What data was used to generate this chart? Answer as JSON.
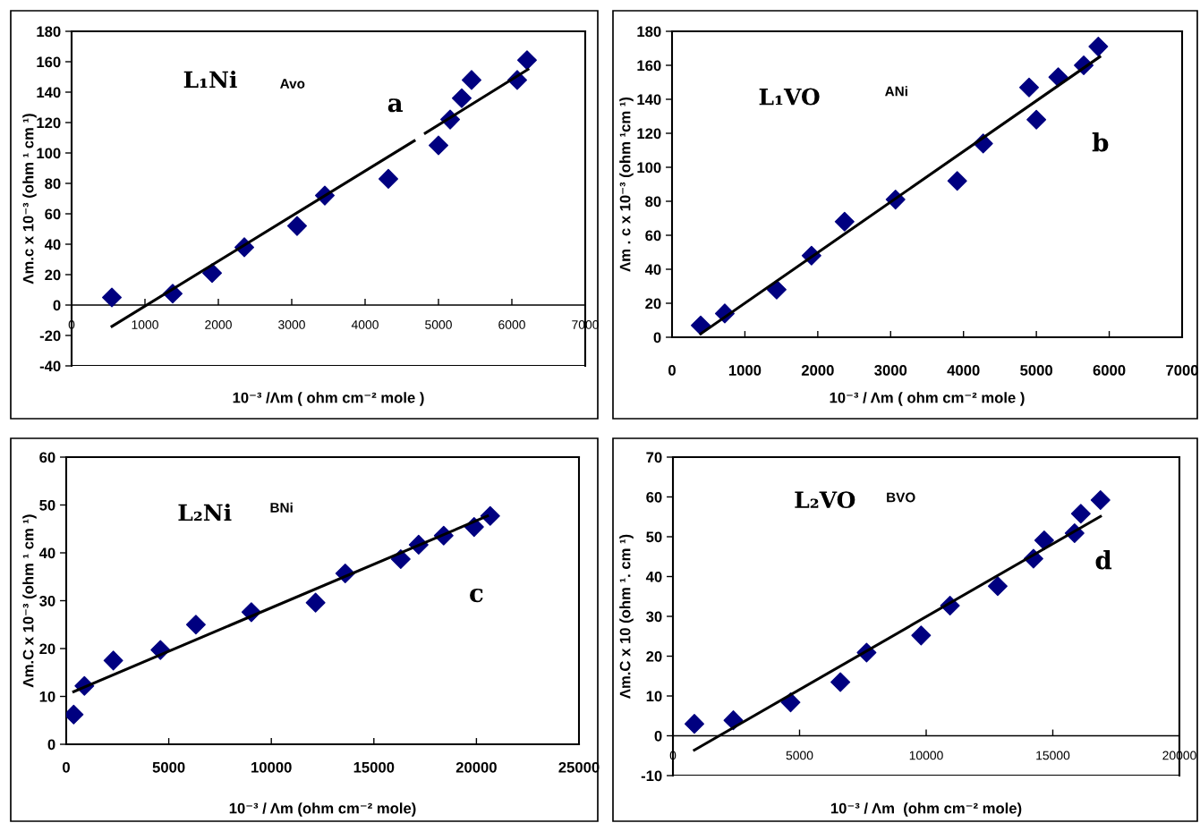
{
  "chart_data": [
    {
      "type": "scatter",
      "title": "L₁Ni",
      "annotations": [
        "Avo",
        "a"
      ],
      "xlabel": "10⁻³ /Λm ( ohm cm⁻² mole )",
      "ylabel": "Λm.c x 10⁻³ (ohm ¹ cm ¹)",
      "xlim": [
        0,
        7000
      ],
      "xticks": [
        0,
        1000,
        2000,
        3000,
        4000,
        5000,
        6000,
        7000
      ],
      "ylim": [
        -40,
        180
      ],
      "yticks": [
        -40,
        -20,
        0,
        20,
        40,
        60,
        80,
        100,
        120,
        140,
        160,
        180
      ],
      "grid": false,
      "legend": false,
      "series": [
        {
          "marker": "diamond",
          "color": "#000080",
          "x": [
            549,
            1378,
            1915,
            2354,
            3073,
            3451,
            4317,
            5000,
            5159,
            5317,
            5451,
            6073,
            6207
          ],
          "values": [
            5,
            7.5,
            21,
            38,
            52,
            72,
            83,
            105,
            122,
            136,
            148,
            148,
            161
          ]
        },
        {
          "type": "line",
          "color": "#000000",
          "x": [
            550,
            4670,
            4750,
            4820,
            6220
          ],
          "values": [
            -14,
            108,
            null,
            113,
            155
          ]
        }
      ]
    },
    {
      "type": "scatter",
      "title": "L₁VO",
      "annotations": [
        "ANi",
        "b"
      ],
      "xlabel": "10⁻³ / Λm ( ohm cm⁻² mole )",
      "ylabel": "Λm . c x 10⁻³ (ohm ¹cm ¹)",
      "xlim": [
        0,
        7000
      ],
      "xticks": [
        0,
        1000,
        2000,
        3000,
        4000,
        5000,
        6000,
        7000
      ],
      "ylim": [
        0,
        180
      ],
      "yticks": [
        0,
        20,
        40,
        60,
        80,
        100,
        120,
        140,
        160,
        180
      ],
      "grid": false,
      "legend": false,
      "series": [
        {
          "marker": "diamond",
          "color": "#000080",
          "x": [
            393,
            724,
            1436,
            1914,
            2368,
            3067,
            3914,
            4270,
            4900,
            5000,
            5300,
            5650,
            5850
          ],
          "values": [
            7,
            14,
            28,
            48,
            68,
            81,
            92,
            114,
            147,
            128,
            153,
            160,
            171
          ]
        },
        {
          "type": "line",
          "color": "#000000",
          "x": [
            393,
            5870
          ],
          "values": [
            2,
            165
          ]
        }
      ]
    },
    {
      "type": "scatter",
      "title": "L₂Ni",
      "annotations": [
        "BNi",
        "c"
      ],
      "xlabel": "10⁻³ / Λm (ohm cm⁻² mole)",
      "ylabel": "Λm.C x 10⁻³ (ohm ¹ cm ¹)",
      "xlim": [
        0,
        25000
      ],
      "xticks": [
        0,
        5000,
        10000,
        15000,
        20000,
        25000
      ],
      "ylim": [
        0,
        60
      ],
      "yticks": [
        0,
        10,
        20,
        30,
        40,
        50,
        60
      ],
      "grid": false,
      "legend": false,
      "series": [
        {
          "marker": "diamond",
          "color": "#000080",
          "x": [
            364,
            886,
            2297,
            4593,
            6323,
            9027,
            12157,
            13603,
            16310,
            17183,
            18404,
            19887,
            20672
          ],
          "values": [
            6.2,
            12.2,
            17.5,
            19.7,
            25,
            27.6,
            29.6,
            35.7,
            38.7,
            41.7,
            43.6,
            45.4,
            47.7
          ]
        },
        {
          "type": "line",
          "color": "#000000",
          "x": [
            364,
            20540
          ],
          "values": [
            11,
            47.7
          ]
        }
      ]
    },
    {
      "type": "scatter",
      "title": "L₂VO",
      "annotations": [
        "BVO",
        "d"
      ],
      "xlabel": "10⁻³ / Λm  (ohm cm⁻² mole)",
      "ylabel": "Λm.C x 10 (ohm ¹. cm ¹)",
      "xlim": [
        0,
        20000
      ],
      "xticks": [
        0,
        5000,
        10000,
        15000,
        20000
      ],
      "ylim": [
        -10,
        70
      ],
      "yticks": [
        -10,
        0,
        10,
        20,
        30,
        40,
        50,
        60,
        70
      ],
      "grid": false,
      "legend": false,
      "series": [
        {
          "marker": "diamond",
          "color": "#000080",
          "x": [
            847,
            2386,
            4647,
            6612,
            7647,
            9800,
            10941,
            12825,
            14237,
            14660,
            15860,
            16107,
            16883
          ],
          "values": [
            3,
            3.9,
            8.4,
            13.5,
            20.9,
            25.2,
            32.7,
            37.6,
            44.5,
            49.1,
            50.9,
            55.8,
            59.2
          ]
        },
        {
          "type": "line",
          "color": "#000000",
          "x": [
            847,
            16883
          ],
          "values": [
            -3.6,
            55.1
          ]
        }
      ]
    }
  ]
}
